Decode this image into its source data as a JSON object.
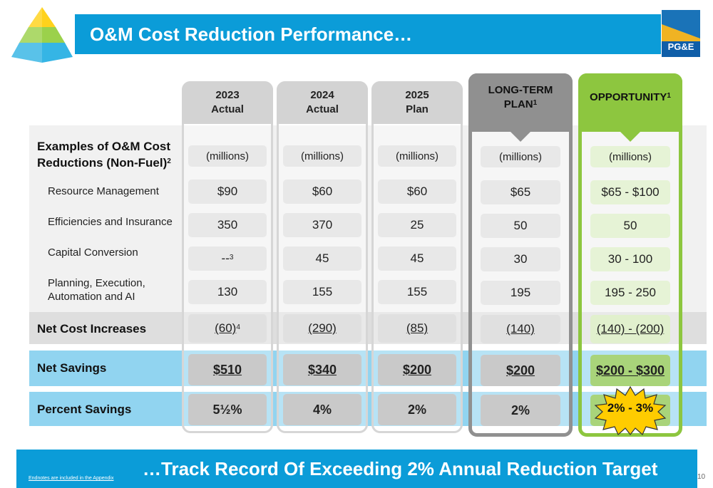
{
  "header": {
    "title": "O&M Cost Reduction Performance…"
  },
  "logo": {
    "text": "PG&E"
  },
  "columns": [
    {
      "line1": "2023",
      "line2": "Actual",
      "unit": "(millions)",
      "resource": "$90",
      "efficiencies": "350",
      "capital": "--",
      "capital_sup": "3",
      "planning": "130",
      "net_cost": "(60)",
      "net_cost_sup": "4",
      "net_savings": "$510",
      "percent": "5½%"
    },
    {
      "line1": "2024",
      "line2": "Actual",
      "unit": "(millions)",
      "resource": "$60",
      "efficiencies": "370",
      "capital": "45",
      "capital_sup": "",
      "planning": "155",
      "net_cost": "(290)",
      "net_cost_sup": "",
      "net_savings": "$340",
      "percent": "4%"
    },
    {
      "line1": "2025",
      "line2": "Plan",
      "unit": "(millions)",
      "resource": "$60",
      "efficiencies": "25",
      "capital": "45",
      "capital_sup": "",
      "planning": "155",
      "net_cost": "(85)",
      "net_cost_sup": "",
      "net_savings": "$200",
      "percent": "2%"
    },
    {
      "line1": "LONG-TERM",
      "line2": "PLAN",
      "line2_sup": "1",
      "unit": "(millions)",
      "resource": "$65",
      "efficiencies": "50",
      "capital": "30",
      "capital_sup": "",
      "planning": "195",
      "net_cost": "(140)",
      "net_cost_sup": "",
      "net_savings": "$200",
      "percent": "2%"
    },
    {
      "line1": "OPPORTUNITY",
      "line1_sup": "1",
      "unit": "(millions)",
      "resource": "$65 - $100",
      "efficiencies": "50",
      "capital": "30 - 100",
      "capital_sup": "",
      "planning": "195 - 250",
      "net_cost": "(140) - (200)",
      "net_cost_sup": "",
      "net_savings": "$200 - $300",
      "percent": "2% - 3%"
    }
  ],
  "rows": {
    "heading_line1": "Examples of O&M Cost",
    "heading_line2": "Reductions (Non-Fuel)",
    "heading_sup": "2",
    "resource": "Resource Management",
    "efficiencies": "Efficiencies and Insurance",
    "capital": "Capital Conversion",
    "planning_line1": "Planning, Execution,",
    "planning_line2": "Automation and AI",
    "net_cost": "Net Cost Increases",
    "net_savings": "Net Savings",
    "percent": "Percent Savings"
  },
  "footer": {
    "tagline": "…Track Record Of Exceeding 2% Annual Reduction Target",
    "endnote": "Endnotes are included in the Appendix",
    "page": "10"
  },
  "colors": {
    "brand_blue": "#0b9cd8",
    "light_blue": "#91d4f0",
    "green": "#8dc63f",
    "gray": "#909090",
    "star": "#ffcc00"
  }
}
